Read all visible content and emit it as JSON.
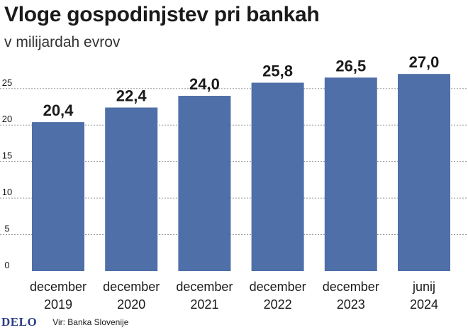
{
  "chart_data": {
    "type": "bar",
    "title": "Vloge gospodinjstev pri bankah",
    "subtitle": "v milijardah evrov",
    "categories": [
      [
        "december",
        "2019"
      ],
      [
        "december",
        "2020"
      ],
      [
        "december",
        "2021"
      ],
      [
        "december",
        "2022"
      ],
      [
        "december",
        "2023"
      ],
      [
        "junij",
        "2024"
      ]
    ],
    "values": [
      20.4,
      22.4,
      24.0,
      25.8,
      26.5,
      27.0
    ],
    "data_labels": [
      "20,4",
      "22,4",
      "24,0",
      "25,8",
      "26,5",
      "27,0"
    ],
    "yticks": [
      0,
      5,
      10,
      15,
      20,
      25
    ],
    "ylim": [
      0,
      27.6
    ],
    "grid": true,
    "bar_color": "#4e6fa8",
    "grid_color": "#9a9a9a"
  },
  "footer": {
    "logo": "DELO",
    "source": "Vir: Banka Slovenije"
  }
}
